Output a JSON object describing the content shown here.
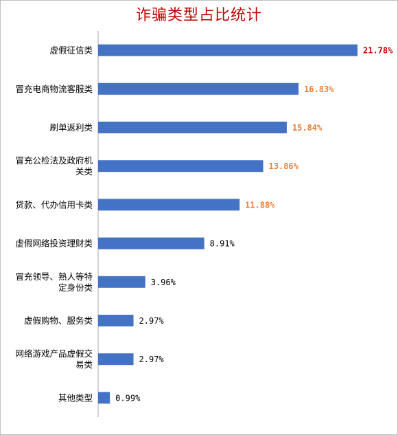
{
  "chart_data": {
    "type": "bar",
    "orientation": "horizontal",
    "title": "诈骗类型占比统计",
    "categories": [
      [
        "虚假征信类"
      ],
      [
        "冒充电商物流客服类"
      ],
      [
        "刷单返利类"
      ],
      [
        "冒充公检法及政府机",
        "关类"
      ],
      [
        "贷款、代办信用卡类"
      ],
      [
        "虚假网络投资理财类"
      ],
      [
        "冒充领导、熟人等特",
        "定身份类"
      ],
      [
        "虚假购物、服务类"
      ],
      [
        "网络游戏产品虚假交",
        "易类"
      ],
      [
        "其他类型"
      ]
    ],
    "values": [
      21.78,
      16.83,
      15.84,
      13.86,
      11.88,
      8.91,
      3.96,
      2.97,
      2.97,
      0.99
    ],
    "labels": [
      "21.78%",
      "16.83%",
      "15.84%",
      "13.86%",
      "11.88%",
      "8.91%",
      "3.96%",
      "2.97%",
      "2.97%",
      "0.99%"
    ],
    "unit": "%",
    "xlim": [
      0,
      24
    ],
    "grid": false,
    "legend": "none",
    "colors": {
      "bar": "#4472c4",
      "title": "#c00000",
      "label_top1": "#c00000",
      "label_top": "#ed7d31",
      "label_default": "#000000",
      "axis": "#a6a6a6"
    }
  }
}
